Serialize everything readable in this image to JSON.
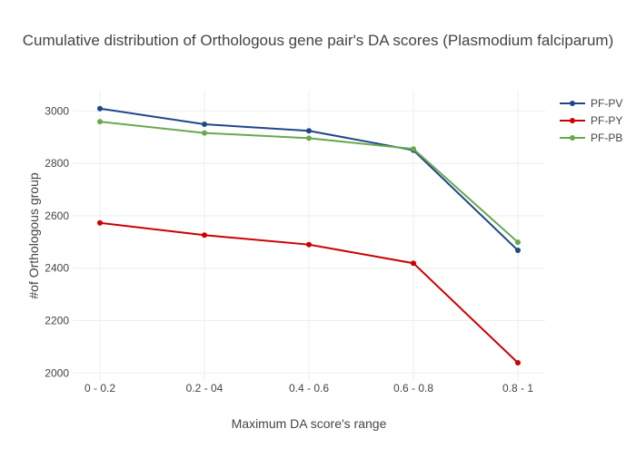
{
  "chart_data": {
    "type": "line",
    "title": "Cumulative distribution of Orthologous gene pair's DA scores (Plasmodium falciparum)",
    "xlabel": "Maximum DA score's range",
    "ylabel": "#of Orthologous group",
    "categories": [
      "0 - 0.2",
      "0.2 - 04",
      "0.4 - 0.6",
      "0.6 - 0.8",
      "0.8 - 1"
    ],
    "ylim": [
      1990,
      3080
    ],
    "yticks": [
      2000,
      2200,
      2400,
      2600,
      2800,
      3000
    ],
    "grid": true,
    "legend_position": "top-right",
    "series": [
      {
        "name": "PF-PV",
        "color": "#1f4788",
        "values": [
          3009,
          2949,
          2924,
          2850,
          2468
        ]
      },
      {
        "name": "PF-PY",
        "color": "#cc0000",
        "values": [
          2573,
          2526,
          2490,
          2419,
          2039
        ]
      },
      {
        "name": "PF-PB",
        "color": "#6aa84f",
        "values": [
          2959,
          2916,
          2896,
          2855,
          2499
        ]
      }
    ]
  }
}
